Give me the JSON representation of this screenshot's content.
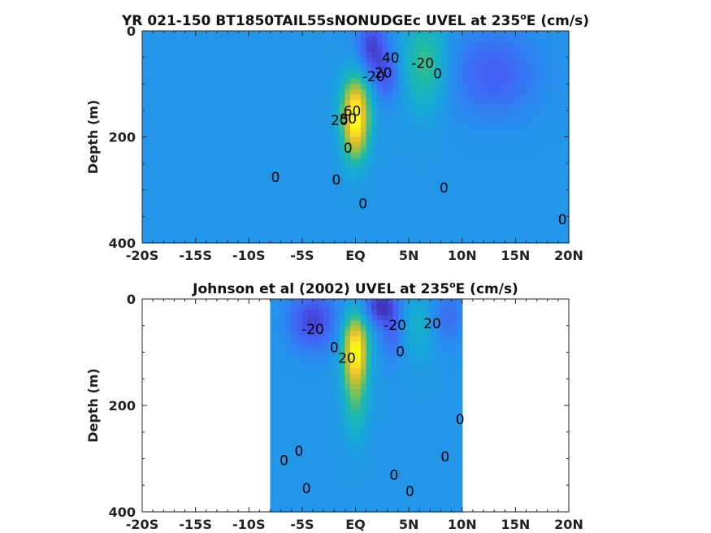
{
  "chart_data": [
    {
      "type": "heatmap",
      "title": "YR 021-150 BT1850TAIL55sNONUDGEc UVEL at 235",
      "title_superscript": "o",
      "title_suffix": "E (cm/s)",
      "ylabel": "Depth (m)",
      "xlim": [
        -20,
        20
      ],
      "ylim": [
        0,
        400
      ],
      "y_inverted": true,
      "xticks": [
        -20,
        -15,
        -10,
        -5,
        0,
        5,
        10,
        15,
        20
      ],
      "xtick_labels": [
        "-20S",
        "-15S",
        "-10S",
        "-5S",
        "EQ",
        "5N",
        "10N",
        "15N",
        "20N"
      ],
      "yticks": [
        0,
        200,
        400
      ],
      "ytick_labels": [
        "0",
        "200",
        "400"
      ],
      "data_extent_x": [
        -20,
        20
      ],
      "data_extent_y": [
        0,
        400
      ],
      "features": [
        {
          "kind": "max",
          "x": 0,
          "y": 150,
          "value": 100,
          "sx": 0.9,
          "sy": 45
        },
        {
          "kind": "max",
          "x": 0,
          "y": 205,
          "value": 40,
          "sx": 0.8,
          "sy": 40
        },
        {
          "kind": "min",
          "x": 1.5,
          "y": 30,
          "value": -35,
          "sx": 1.0,
          "sy": 40
        },
        {
          "kind": "min",
          "x": 3,
          "y": 85,
          "value": -25,
          "sx": 0.9,
          "sy": 35
        },
        {
          "kind": "max",
          "x": 6.5,
          "y": 60,
          "value": 40,
          "sx": 1.4,
          "sy": 60
        },
        {
          "kind": "min",
          "x": 13,
          "y": 80,
          "value": -25,
          "sx": 3.0,
          "sy": 60
        }
      ],
      "contour_labels": [
        {
          "text": "-20",
          "x": 1.7,
          "y": 95
        },
        {
          "text": "20",
          "x": 2.6,
          "y": 88
        },
        {
          "text": "40",
          "x": 3.3,
          "y": 60
        },
        {
          "text": "-20",
          "x": 6.3,
          "y": 70
        },
        {
          "text": "0",
          "x": 7.7,
          "y": 90
        },
        {
          "text": "60",
          "x": -0.3,
          "y": 160
        },
        {
          "text": "80",
          "x": -0.7,
          "y": 175
        },
        {
          "text": "20",
          "x": -1.5,
          "y": 178
        },
        {
          "text": "0",
          "x": -0.7,
          "y": 230
        },
        {
          "text": "0",
          "x": -1.8,
          "y": 290
        },
        {
          "text": "0",
          "x": -7.5,
          "y": 285
        },
        {
          "text": "0",
          "x": 0.7,
          "y": 335
        },
        {
          "text": "0",
          "x": 8.3,
          "y": 305
        },
        {
          "text": "0",
          "x": 19.4,
          "y": 365
        }
      ]
    },
    {
      "type": "heatmap",
      "title": "Johnson et al (2002) UVEL at 235",
      "title_superscript": "o",
      "title_suffix": "E (cm/s)",
      "ylabel": "Depth (m)",
      "xlim": [
        -20,
        20
      ],
      "ylim": [
        0,
        400
      ],
      "y_inverted": true,
      "xticks": [
        -20,
        -15,
        -10,
        -5,
        0,
        5,
        10,
        15,
        20
      ],
      "xtick_labels": [
        "-20S",
        "-15S",
        "-10S",
        "-5S",
        "EQ",
        "5N",
        "10N",
        "15N",
        "20N"
      ],
      "yticks": [
        0,
        200,
        400
      ],
      "ytick_labels": [
        "0",
        "200",
        "400"
      ],
      "data_extent_x": [
        -8,
        10
      ],
      "data_extent_y": [
        0,
        400
      ],
      "features": [
        {
          "kind": "max",
          "x": 0,
          "y": 95,
          "value": 110,
          "sx": 0.8,
          "sy": 45
        },
        {
          "kind": "max",
          "x": 0,
          "y": 190,
          "value": 35,
          "sx": 0.8,
          "sy": 50
        },
        {
          "kind": "min",
          "x": -4,
          "y": 40,
          "value": -35,
          "sx": 1.6,
          "sy": 40
        },
        {
          "kind": "min",
          "x": 2.4,
          "y": 15,
          "value": -40,
          "sx": 1.2,
          "sy": 25
        },
        {
          "kind": "min",
          "x": 3.5,
          "y": 70,
          "value": -20,
          "sx": 0.8,
          "sy": 35
        },
        {
          "kind": "max",
          "x": 6,
          "y": 50,
          "value": 20,
          "sx": 1.2,
          "sy": 45
        },
        {
          "kind": "min",
          "x": 8.5,
          "y": 30,
          "value": -20,
          "sx": 1.2,
          "sy": 40
        }
      ],
      "contour_labels": [
        {
          "text": "-20",
          "x": -4.0,
          "y": 66
        },
        {
          "text": "-20",
          "x": 3.7,
          "y": 58
        },
        {
          "text": "20",
          "x": 7.2,
          "y": 55
        },
        {
          "text": "0",
          "x": -2.0,
          "y": 100
        },
        {
          "text": "0",
          "x": 4.2,
          "y": 108
        },
        {
          "text": "20",
          "x": -0.8,
          "y": 120
        },
        {
          "text": "0",
          "x": 9.8,
          "y": 235
        },
        {
          "text": "0",
          "x": -6.7,
          "y": 312
        },
        {
          "text": "0",
          "x": -5.3,
          "y": 295
        },
        {
          "text": "0",
          "x": 3.6,
          "y": 340
        },
        {
          "text": "0",
          "x": 8.4,
          "y": 305
        },
        {
          "text": "0",
          "x": -4.6,
          "y": 365
        },
        {
          "text": "0",
          "x": 5.1,
          "y": 370
        }
      ]
    }
  ]
}
